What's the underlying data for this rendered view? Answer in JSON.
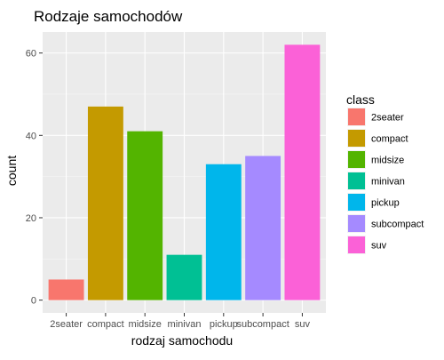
{
  "chart_data": {
    "type": "bar",
    "title": "Rodzaje samochodów",
    "xlabel": "rodzaj samochodu",
    "ylabel": "count",
    "categories": [
      "2seater",
      "compact",
      "midsize",
      "minivan",
      "pickup",
      "subcompact",
      "suv"
    ],
    "values": [
      5,
      47,
      41,
      11,
      33,
      35,
      62
    ],
    "colors": [
      "#F8766D",
      "#C49A00",
      "#53B400",
      "#00C094",
      "#00B6EB",
      "#A58AFF",
      "#FB61D7"
    ],
    "ylim": [
      -3.1,
      65.1
    ],
    "yticks": [
      0,
      20,
      40,
      60
    ],
    "grid": true,
    "panel_background": "#EBEBEB",
    "legend": {
      "title": "class",
      "position": "right",
      "entries": [
        "2seater",
        "compact",
        "midsize",
        "minivan",
        "pickup",
        "subcompact",
        "suv"
      ]
    }
  }
}
